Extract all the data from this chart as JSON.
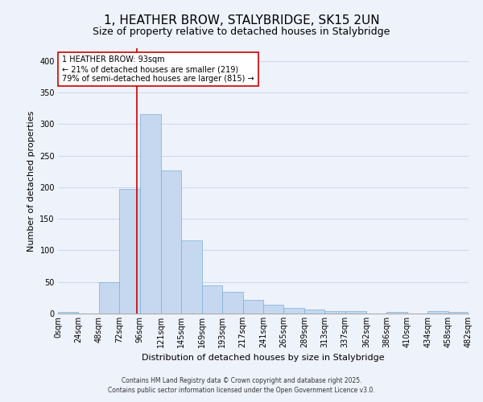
{
  "title": "1, HEATHER BROW, STALYBRIDGE, SK15 2UN",
  "subtitle": "Size of property relative to detached houses in Stalybridge",
  "xlabel": "Distribution of detached houses by size in Stalybridge",
  "ylabel": "Number of detached properties",
  "bin_edges": [
    0,
    24,
    48,
    72,
    96,
    121,
    145,
    169,
    193,
    217,
    241,
    265,
    289,
    313,
    337,
    362,
    386,
    410,
    434,
    458,
    482
  ],
  "bin_counts": [
    2,
    0,
    50,
    197,
    315,
    227,
    116,
    45,
    35,
    22,
    14,
    9,
    6,
    4,
    4,
    0,
    3,
    0,
    4,
    3
  ],
  "bar_color": "#c5d8f0",
  "bar_edge_color": "#7aafd4",
  "vline_x": 93,
  "vline_color": "#cc0000",
  "annotation_text": "1 HEATHER BROW: 93sqm\n← 21% of detached houses are smaller (219)\n79% of semi-detached houses are larger (815) →",
  "annotation_box_color": "#ffffff",
  "annotation_box_edge_color": "#cc0000",
  "ylim": [
    0,
    420
  ],
  "yticks": [
    0,
    50,
    100,
    150,
    200,
    250,
    300,
    350,
    400
  ],
  "footer1": "Contains HM Land Registry data © Crown copyright and database right 2025.",
  "footer2": "Contains public sector information licensed under the Open Government Licence v3.0.",
  "background_color": "#eef2fb",
  "grid_color": "#d0d8ee",
  "title_fontsize": 11,
  "subtitle_fontsize": 9,
  "axis_label_fontsize": 8,
  "tick_fontsize": 7,
  "annotation_fontsize": 7,
  "footer_fontsize": 5.5,
  "tick_labels": [
    "0sqm",
    "24sqm",
    "48sqm",
    "72sqm",
    "96sqm",
    "121sqm",
    "145sqm",
    "169sqm",
    "193sqm",
    "217sqm",
    "241sqm",
    "265sqm",
    "289sqm",
    "313sqm",
    "337sqm",
    "362sqm",
    "386sqm",
    "410sqm",
    "434sqm",
    "458sqm",
    "482sqm"
  ]
}
